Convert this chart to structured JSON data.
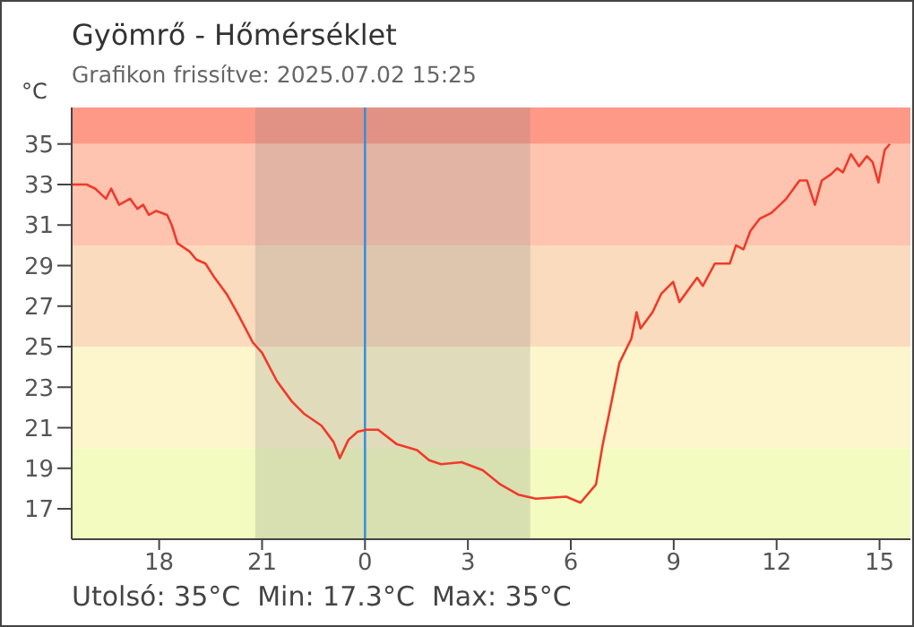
{
  "chart_data": {
    "type": "line",
    "title": "Gyömrő - Hőmérséklet",
    "subtitle": "Grafikon frissítve: 2025.07.02 15:25",
    "ylabel": "°C",
    "annotations": [
      "Utolsó: 35°C  Min: 17.3°C  Max: 35°C"
    ],
    "x": [
      "2025-07-01T15:27",
      "2025-07-01T15:53",
      "2025-07-01T16:08",
      "2025-07-01T16:27",
      "2025-07-01T16:36",
      "2025-07-01T16:50",
      "2025-07-01T17:09",
      "2025-07-01T17:22",
      "2025-07-01T17:32",
      "2025-07-01T17:42",
      "2025-07-01T17:55",
      "2025-07-01T18:14",
      "2025-07-01T18:22",
      "2025-07-01T18:32",
      "2025-07-01T18:53",
      "2025-07-01T19:05",
      "2025-07-01T19:21",
      "2025-07-01T19:37",
      "2025-07-01T19:58",
      "2025-07-01T20:18",
      "2025-07-01T20:44",
      "2025-07-01T21:00",
      "2025-07-01T21:26",
      "2025-07-01T21:52",
      "2025-07-01T22:13",
      "2025-07-01T22:44",
      "2025-07-01T23:05",
      "2025-07-01T23:16",
      "2025-07-01T23:31",
      "2025-07-01T23:47",
      "2025-07-02T00:02",
      "2025-07-02T00:23",
      "2025-07-02T00:55",
      "2025-07-02T01:31",
      "2025-07-02T01:52",
      "2025-07-02T02:13",
      "2025-07-02T02:49",
      "2025-07-02T03:26",
      "2025-07-02T03:57",
      "2025-07-02T04:28",
      "2025-07-02T04:59",
      "2025-07-02T05:52",
      "2025-07-02T06:17",
      "2025-07-02T06:44",
      "2025-07-02T06:56",
      "2025-07-02T07:07",
      "2025-07-02T07:25",
      "2025-07-02T07:46",
      "2025-07-02T07:55",
      "2025-07-02T08:02",
      "2025-07-02T08:23",
      "2025-07-02T08:38",
      "2025-07-02T08:59",
      "2025-07-02T09:10",
      "2025-07-02T09:41",
      "2025-07-02T09:51",
      "2025-07-02T10:12",
      "2025-07-02T10:38",
      "2025-07-02T10:49",
      "2025-07-02T11:02",
      "2025-07-02T11:14",
      "2025-07-02T11:30",
      "2025-07-02T11:51",
      "2025-07-02T12:17",
      "2025-07-02T12:40",
      "2025-07-02T12:53",
      "2025-07-02T13:07",
      "2025-07-02T13:19",
      "2025-07-02T13:35",
      "2025-07-02T13:46",
      "2025-07-02T13:56",
      "2025-07-02T14:10",
      "2025-07-02T14:24",
      "2025-07-02T14:38",
      "2025-07-02T14:48",
      "2025-07-02T14:58",
      "2025-07-02T15:09",
      "2025-07-02T15:18"
    ],
    "series": [
      {
        "color": "#f03a2a",
        "values": [
          33.0,
          33.0,
          32.8,
          32.3,
          32.8,
          32.0,
          32.3,
          31.8,
          32.0,
          31.5,
          31.7,
          31.5,
          31.0,
          30.1,
          29.7,
          29.3,
          29.1,
          28.4,
          27.6,
          26.6,
          25.2,
          24.7,
          23.3,
          22.3,
          21.7,
          21.1,
          20.3,
          19.5,
          20.4,
          20.8,
          20.9,
          20.9,
          20.2,
          19.9,
          19.4,
          19.2,
          19.3,
          18.9,
          18.2,
          17.7,
          17.5,
          17.6,
          17.3,
          18.2,
          20.2,
          21.7,
          24.2,
          25.4,
          26.7,
          25.9,
          26.7,
          27.6,
          28.2,
          27.2,
          28.4,
          28.0,
          29.1,
          29.1,
          30.0,
          29.8,
          30.7,
          31.3,
          31.6,
          32.3,
          33.2,
          33.2,
          32.0,
          33.2,
          33.5,
          33.8,
          33.6,
          34.5,
          33.9,
          34.4,
          34.1,
          33.1,
          34.7,
          35.0
        ]
      }
    ],
    "xlim": [
      "2025-07-01T15:27",
      "2025-07-02T15:54"
    ],
    "xticks": [
      {
        "value": "2025-07-01T18:00",
        "label": "18"
      },
      {
        "value": "2025-07-01T21:00",
        "label": "21"
      },
      {
        "value": "2025-07-02T00:00",
        "label": "0"
      },
      {
        "value": "2025-07-02T03:00",
        "label": "3"
      },
      {
        "value": "2025-07-02T06:00",
        "label": "6"
      },
      {
        "value": "2025-07-02T09:00",
        "label": "9"
      },
      {
        "value": "2025-07-02T12:00",
        "label": "12"
      },
      {
        "value": "2025-07-02T15:00",
        "label": "15"
      }
    ],
    "ylim": [
      15.5,
      36.8
    ],
    "yticks": [
      17,
      19,
      21,
      23,
      25,
      27,
      29,
      31,
      33,
      35
    ],
    "bands": [
      {
        "axis": "y",
        "from": 35,
        "to": 36.8,
        "color": "#ff9987"
      },
      {
        "axis": "y",
        "from": 30,
        "to": 35,
        "color": "#fec4b0"
      },
      {
        "axis": "y",
        "from": 25,
        "to": 30,
        "color": "#fadbbd"
      },
      {
        "axis": "y",
        "from": 20,
        "to": 25,
        "color": "#fdf6cd"
      },
      {
        "axis": "y",
        "from": 15.5,
        "to": 20,
        "color": "#f3fbc0"
      },
      {
        "axis": "x",
        "from": "2025-07-01T20:48",
        "to": "2025-07-02T04:49",
        "color": "#7a7a7a"
      }
    ],
    "ref_lines": [
      {
        "axis": "x",
        "value": "2025-07-02T00:00",
        "color": "#2a8fe0"
      }
    ]
  }
}
